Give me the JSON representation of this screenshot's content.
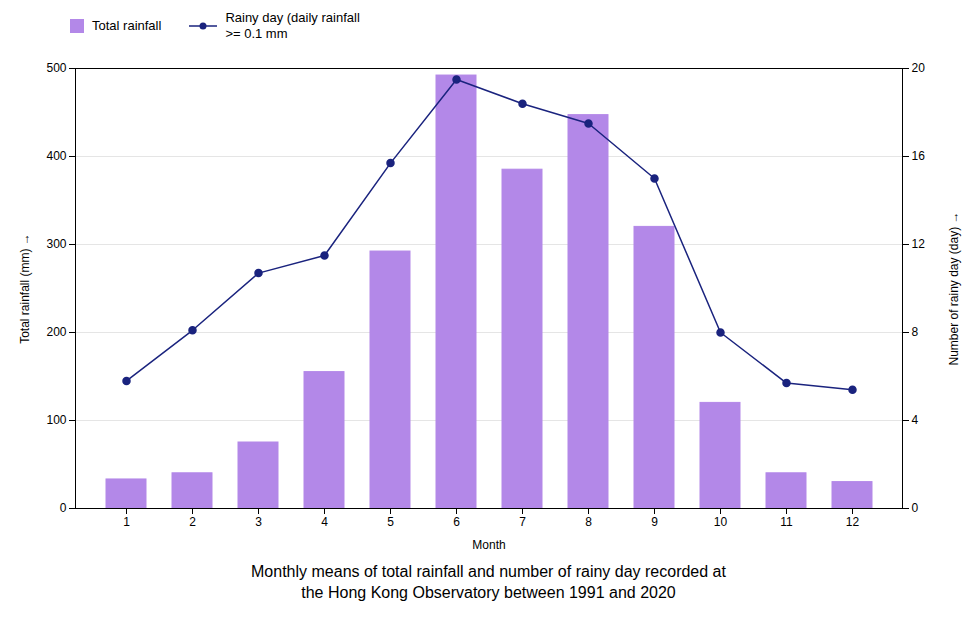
{
  "chart_data": {
    "type": "bar",
    "title": "Monthly means of total rainfall and number of rainy day recorded at\nthe Hong Kong Observatory between 1991 and 2020",
    "x_label": "Month",
    "y_label": "Total rainfall (mm)",
    "y2_label": "Number of rainy day (day)",
    "categories": [
      "1",
      "2",
      "3",
      "4",
      "5",
      "6",
      "7",
      "8",
      "9",
      "10",
      "11",
      "12"
    ],
    "series": [
      {
        "name": "Total rainfall",
        "type": "bar",
        "color": "#b388e8",
        "values": [
          33.0,
          40.0,
          75.0,
          155.0,
          292.0,
          492.0,
          385.0,
          447.0,
          320.0,
          120.0,
          40.0,
          30.0
        ]
      },
      {
        "name": "Rainy day (daily rainfall\n>= 0.1 mm",
        "type": "line",
        "marker": "circle",
        "color": "#1a237e",
        "axis": "y2",
        "values": [
          5.8,
          8.1,
          10.7,
          11.5,
          15.7,
          19.5,
          18.4,
          17.5,
          15.0,
          8.0,
          5.7,
          5.4
        ]
      }
    ],
    "ylim": [
      0,
      500
    ],
    "yticks": [
      0,
      100,
      200,
      300,
      400,
      500
    ],
    "y2lim": [
      0,
      20
    ],
    "y2ticks": [
      0,
      4,
      8,
      12,
      16,
      20
    ],
    "grid": true,
    "legend": "upper left"
  }
}
